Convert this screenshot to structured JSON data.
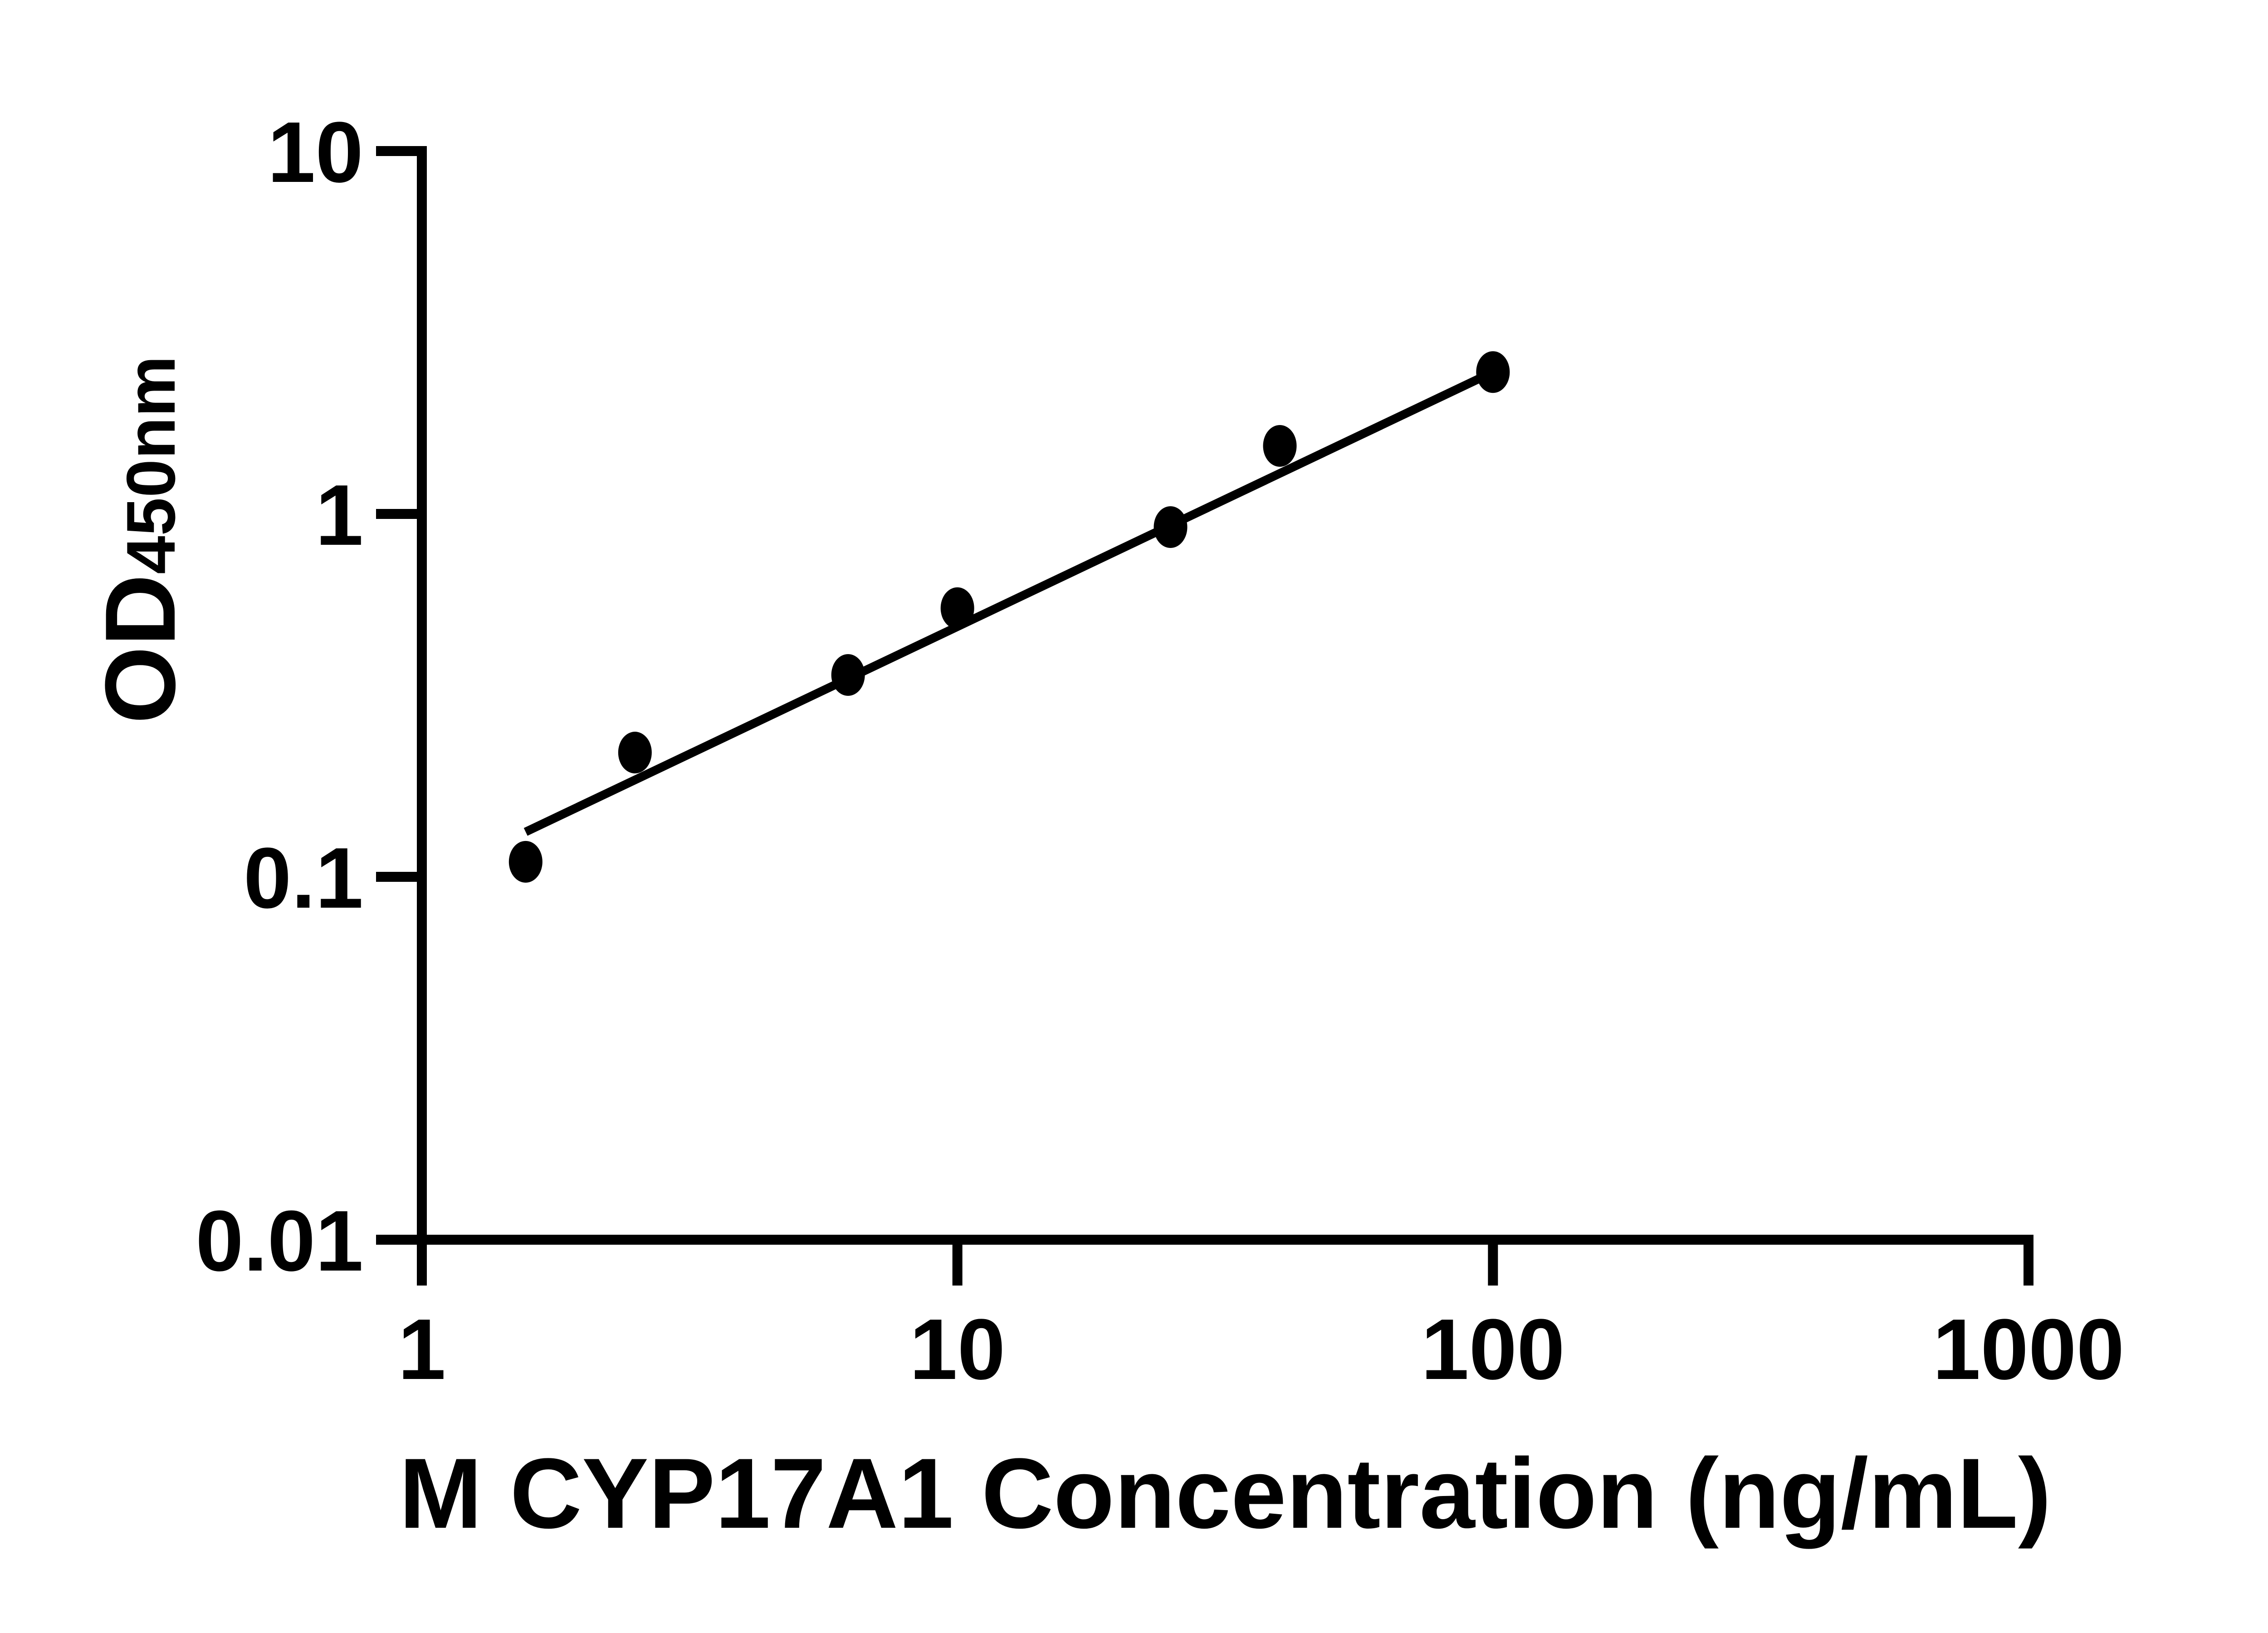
{
  "figure": {
    "background_color": "#ffffff",
    "foreground_color": "#000000"
  },
  "chart_data": {
    "type": "scatter",
    "title": "",
    "xlabel": "M CYP17A1 Concentration (ng/mL)",
    "ylabel_main": "OD",
    "ylabel_sub": "450nm",
    "x_scale": "log",
    "y_scale": "log",
    "xlim": [
      1,
      1000
    ],
    "ylim": [
      0.01,
      10
    ],
    "grid": false,
    "legend": null,
    "x_ticks": [
      {
        "value": 1,
        "label": "1"
      },
      {
        "value": 10,
        "label": "10"
      },
      {
        "value": 100,
        "label": "100"
      },
      {
        "value": 1000,
        "label": "1000"
      }
    ],
    "y_ticks": [
      {
        "value": 10,
        "label": "10"
      },
      {
        "value": 1,
        "label": "1"
      },
      {
        "value": 0.1,
        "label": "0.1"
      },
      {
        "value": 0.01,
        "label": "0.01"
      }
    ],
    "series": [
      {
        "name": "standard-curve-points",
        "marker": "ellipse",
        "color": "#000000",
        "points": [
          {
            "x": 1.5625,
            "y": 0.11
          },
          {
            "x": 2.5,
            "y": 0.22
          },
          {
            "x": 6.25,
            "y": 0.36
          },
          {
            "x": 10,
            "y": 0.55
          },
          {
            "x": 25,
            "y": 0.92
          },
          {
            "x": 40,
            "y": 1.54
          },
          {
            "x": 100,
            "y": 2.46
          }
        ]
      }
    ],
    "trendline": {
      "x1": 1.5625,
      "y1": 0.133,
      "x2": 100,
      "y2": 2.46,
      "color": "#000000"
    }
  }
}
